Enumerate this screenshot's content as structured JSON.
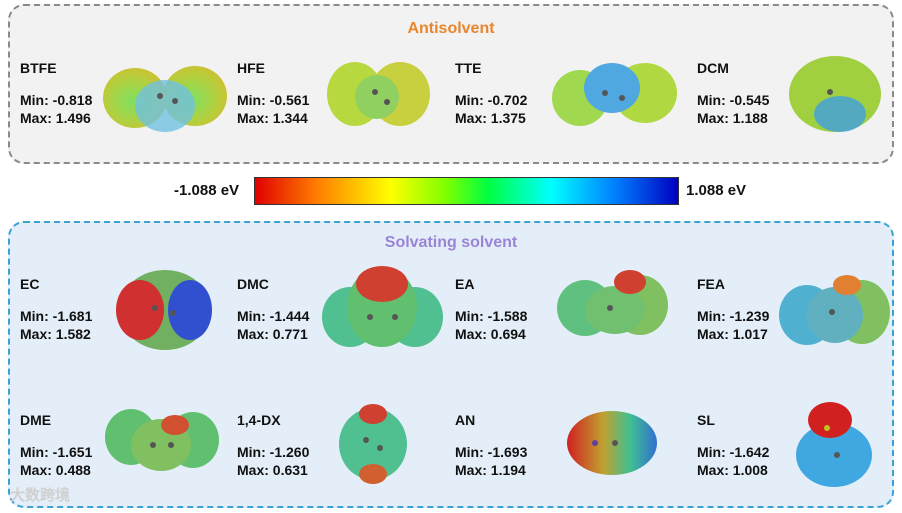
{
  "antisolvent": {
    "title": "Antisolvent",
    "molecules": [
      {
        "name": "BTFE",
        "min": "Min: -0.818",
        "max": "Max: 1.496"
      },
      {
        "name": "HFE",
        "min": "Min: -0.561",
        "max": "Max: 1.344"
      },
      {
        "name": "TTE",
        "min": "Min: -0.702",
        "max": "Max: 1.375"
      },
      {
        "name": "DCM",
        "min": "Min: -0.545",
        "max": "Max: 1.188"
      }
    ]
  },
  "colorbar": {
    "min_label": "-1.088 eV",
    "max_label": "1.088 eV"
  },
  "solvating": {
    "title": "Solvating solvent",
    "molecules": [
      {
        "name": "EC",
        "min": "Min: -1.681",
        "max": "Max: 1.582"
      },
      {
        "name": "DMC",
        "min": "Min: -1.444",
        "max": "Max: 0.771"
      },
      {
        "name": "EA",
        "min": "Min: -1.588",
        "max": "Max: 0.694"
      },
      {
        "name": "FEA",
        "min": "Min: -1.239",
        "max": "Max: 1.017"
      },
      {
        "name": "DME",
        "min": "Min: -1.651",
        "max": "Max: 0.488"
      },
      {
        "name": "1,4-DX",
        "min": "Min: -1.260",
        "max": "Max: 0.631"
      },
      {
        "name": "AN",
        "min": "Min: -1.693",
        "max": "Max: 1.194"
      },
      {
        "name": "SL",
        "min": "Min: -1.642",
        "max": "Max: 1.008"
      }
    ]
  },
  "watermark": "大数跨境"
}
